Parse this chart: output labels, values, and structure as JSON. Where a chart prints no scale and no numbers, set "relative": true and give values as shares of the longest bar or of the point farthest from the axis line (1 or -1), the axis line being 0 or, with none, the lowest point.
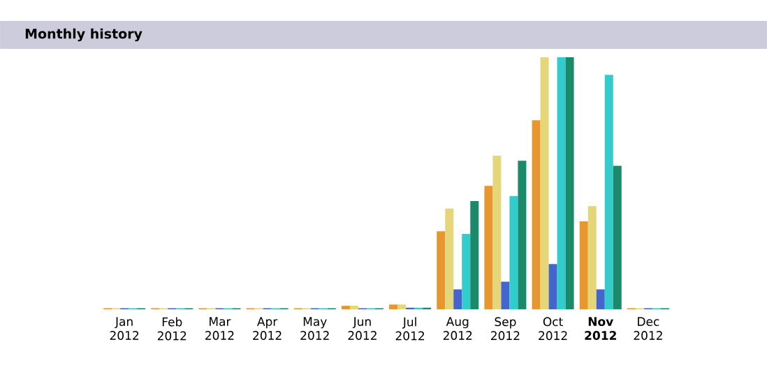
{
  "chart_data": {
    "type": "bar",
    "title": "Monthly history",
    "relative": true,
    "categories": [
      "Jan 2012",
      "Feb 2012",
      "Mar 2012",
      "Apr 2012",
      "May 2012",
      "Jun 2012",
      "Jul 2012",
      "Aug 2012",
      "Sep 2012",
      "Oct 2012",
      "**Nov 2012**",
      "Dec 2012"
    ],
    "series": [
      {
        "color": "#e8962e",
        "values": [
          0.005,
          0.005,
          0.005,
          0.005,
          0.005,
          0.015,
          0.02,
          0.31,
          0.49,
          0.75,
          0.35,
          0.005
        ]
      },
      {
        "color": "#e6d67a",
        "values": [
          0.005,
          0.005,
          0.005,
          0.005,
          0.005,
          0.015,
          0.02,
          0.4,
          0.61,
          1,
          0.41,
          0.005
        ]
      },
      {
        "color": "#4466cc",
        "values": [
          0.005,
          0.005,
          0.005,
          0.005,
          0.005,
          0.005,
          0.007,
          0.08,
          0.11,
          0.18,
          0.08,
          0.005
        ]
      },
      {
        "color": "#33cccc",
        "values": [
          0.005,
          0.005,
          0.005,
          0.005,
          0.005,
          0.005,
          0.007,
          0.3,
          0.45,
          1,
          0.93,
          0.005
        ]
      },
      {
        "color": "#1a8a6a",
        "values": [
          0.005,
          0.005,
          0.005,
          0.005,
          0.005,
          0.005,
          0.007,
          0.43,
          0.59,
          1,
          0.57,
          0.005
        ]
      }
    ]
  }
}
